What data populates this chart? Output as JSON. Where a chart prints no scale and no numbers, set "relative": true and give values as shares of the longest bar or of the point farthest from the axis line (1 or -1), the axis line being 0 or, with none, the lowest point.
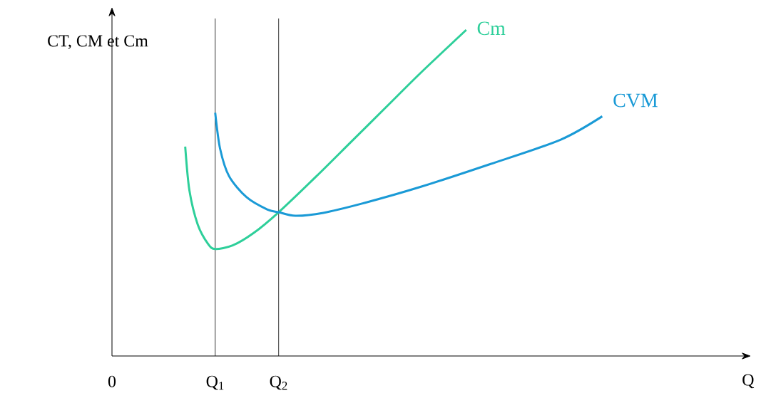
{
  "chart_data": {
    "type": "line",
    "relative": true,
    "ylabel": "CT, CM et Cm",
    "xlabel": "Q",
    "xlim": [
      0,
      9
    ],
    "xticks": [
      0,
      {
        "value": 1.48,
        "label": "Q$_{1}$"
      },
      {
        "value": 2.39,
        "label": "Q$_{2}$"
      }
    ],
    "ref_lines": [
      {
        "axis": "x",
        "value": 1.48
      },
      {
        "axis": "x",
        "value": 2.39
      }
    ],
    "series": [
      {
        "name": "Cm",
        "color": "#2ecf9a",
        "x": [
          1.05,
          1.11,
          1.23,
          1.38,
          1.48,
          1.73,
          2.03,
          2.39,
          2.93,
          3.43,
          3.93,
          4.43,
          5.08
        ],
        "values": [
          0.642,
          0.508,
          0.403,
          0.343,
          0.328,
          0.339,
          0.377,
          0.441,
          0.551,
          0.657,
          0.763,
          0.869,
          1
        ]
      },
      {
        "name": "CVM",
        "color": "#1a9ad6",
        "x": [
          1.48,
          1.55,
          1.68,
          1.93,
          2.23,
          2.39,
          2.63,
          3.03,
          3.63,
          4.43,
          5.43,
          6.43,
          7.03
        ],
        "values": [
          0.746,
          0.636,
          0.551,
          0.487,
          0.449,
          0.441,
          0.43,
          0.439,
          0.47,
          0.519,
          0.589,
          0.663,
          0.735
        ]
      }
    ]
  }
}
